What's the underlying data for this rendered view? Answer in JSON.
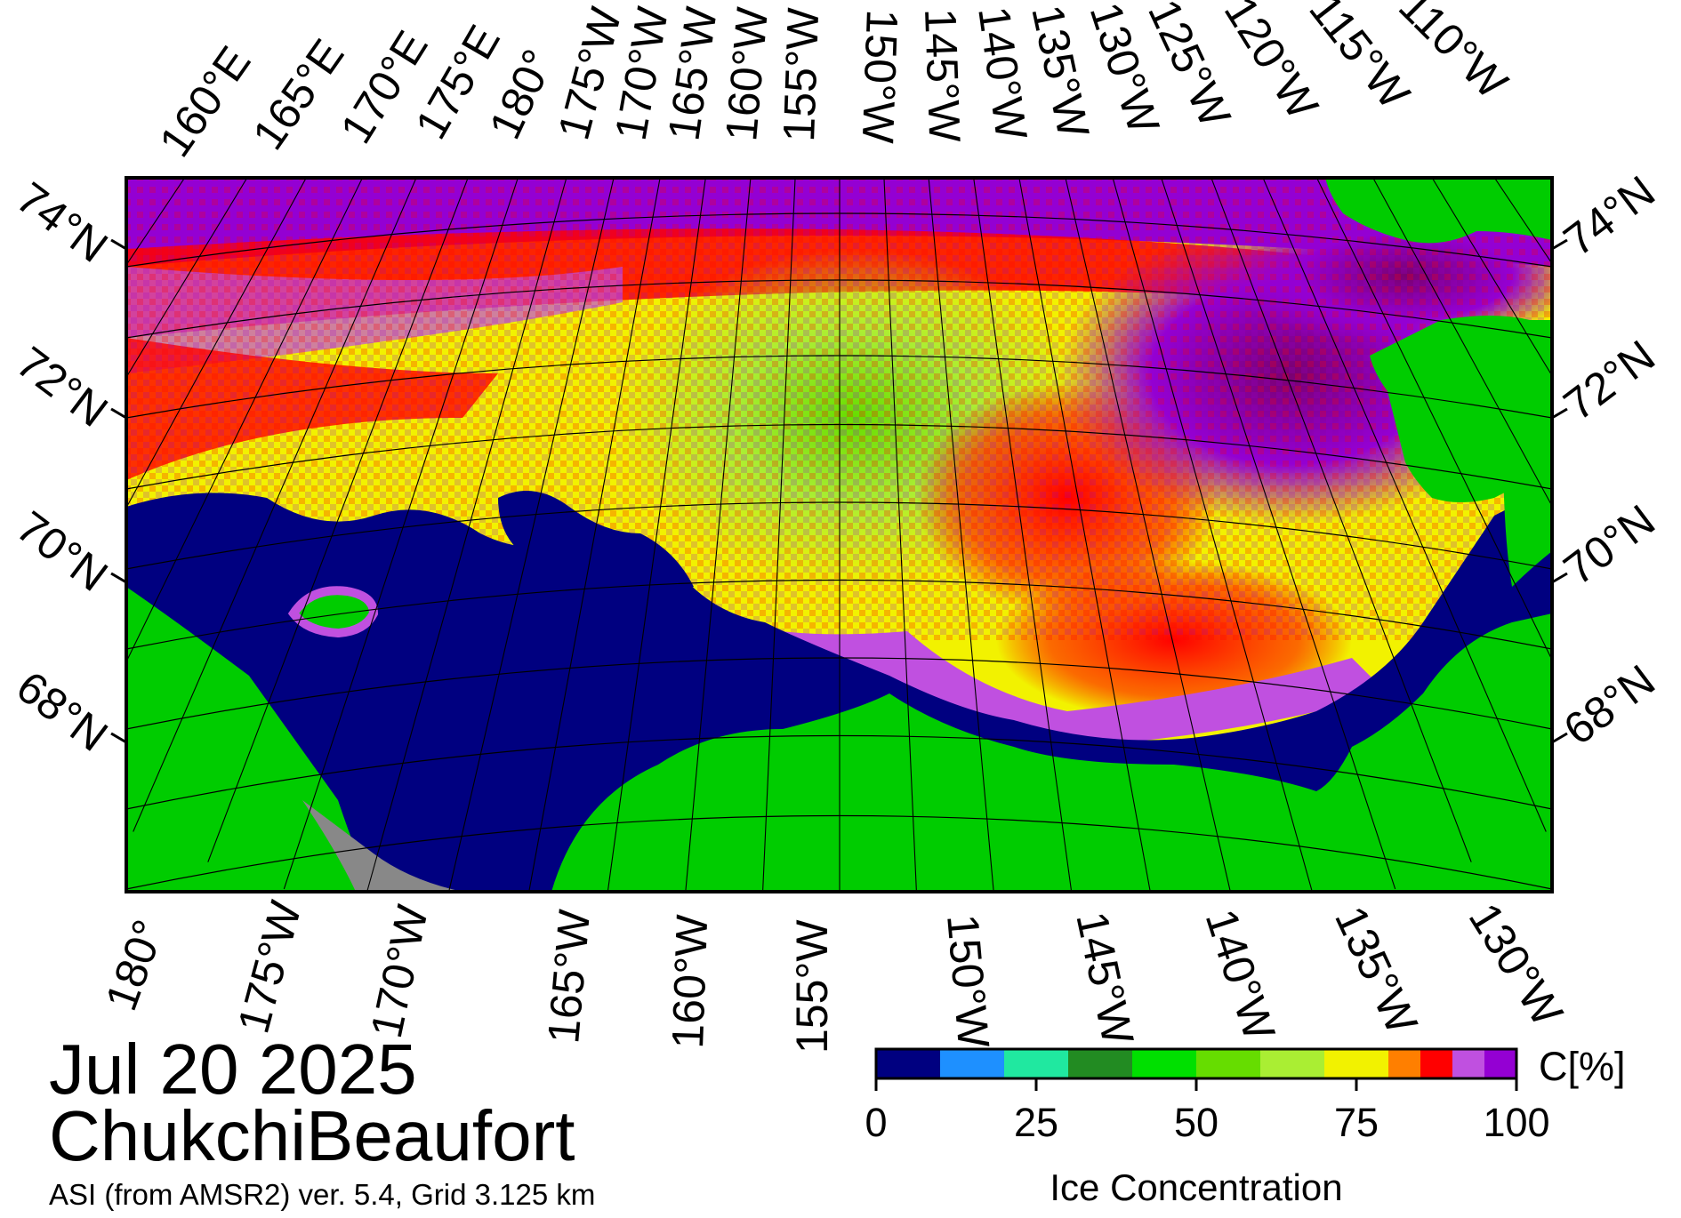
{
  "map": {
    "date": "Jul 20 2025",
    "region": "ChukchiBeaufort",
    "subtitle": "ASI (from AMSR2) ver. 5.4,  Grid 3.125 km",
    "colors": {
      "land": "#00cc00",
      "open_water": "#000080",
      "no_data": "#888888",
      "frame": "#000000"
    },
    "lat_labels_left": [
      "74°N",
      "72°N",
      "70°N",
      "68°N"
    ],
    "lat_labels_right": [
      "74°N",
      "72°N",
      "70°N",
      "68°N"
    ],
    "top_lon_labels": [
      "160°E",
      "165°E",
      "170°E",
      "175°E",
      "180°",
      "175°W",
      "170°W",
      "165°W",
      "160°W",
      "155°W",
      "150°W",
      "145°W",
      "140°W",
      "135°W",
      "130°W",
      "125°W",
      "120°W",
      "115°W",
      "110°W"
    ],
    "bottom_lon_labels": [
      "180°",
      "175°W",
      "170°W",
      "165°W",
      "160°W",
      "155°W",
      "150°W",
      "145°W",
      "140°W",
      "135°W",
      "130°W"
    ]
  },
  "legend": {
    "title": "Ice Concentration",
    "unit": "C[%]",
    "ticks": [
      "0",
      "25",
      "50",
      "75",
      "100"
    ],
    "bins": [
      {
        "from": 0,
        "to": 10,
        "color": "#000080"
      },
      {
        "from": 10,
        "to": 20,
        "color": "#1e90ff"
      },
      {
        "from": 20,
        "to": 30,
        "color": "#20e8a0"
      },
      {
        "from": 30,
        "to": 40,
        "color": "#228b22"
      },
      {
        "from": 40,
        "to": 50,
        "color": "#00e000"
      },
      {
        "from": 50,
        "to": 60,
        "color": "#66dd00"
      },
      {
        "from": 60,
        "to": 70,
        "color": "#aaee33"
      },
      {
        "from": 70,
        "to": 80,
        "color": "#f2f200"
      },
      {
        "from": 80,
        "to": 85,
        "color": "#ff7f00"
      },
      {
        "from": 85,
        "to": 90,
        "color": "#ff0000"
      },
      {
        "from": 90,
        "to": 95,
        "color": "#c050e0"
      },
      {
        "from": 95,
        "to": 100,
        "color": "#9400d3"
      }
    ]
  }
}
